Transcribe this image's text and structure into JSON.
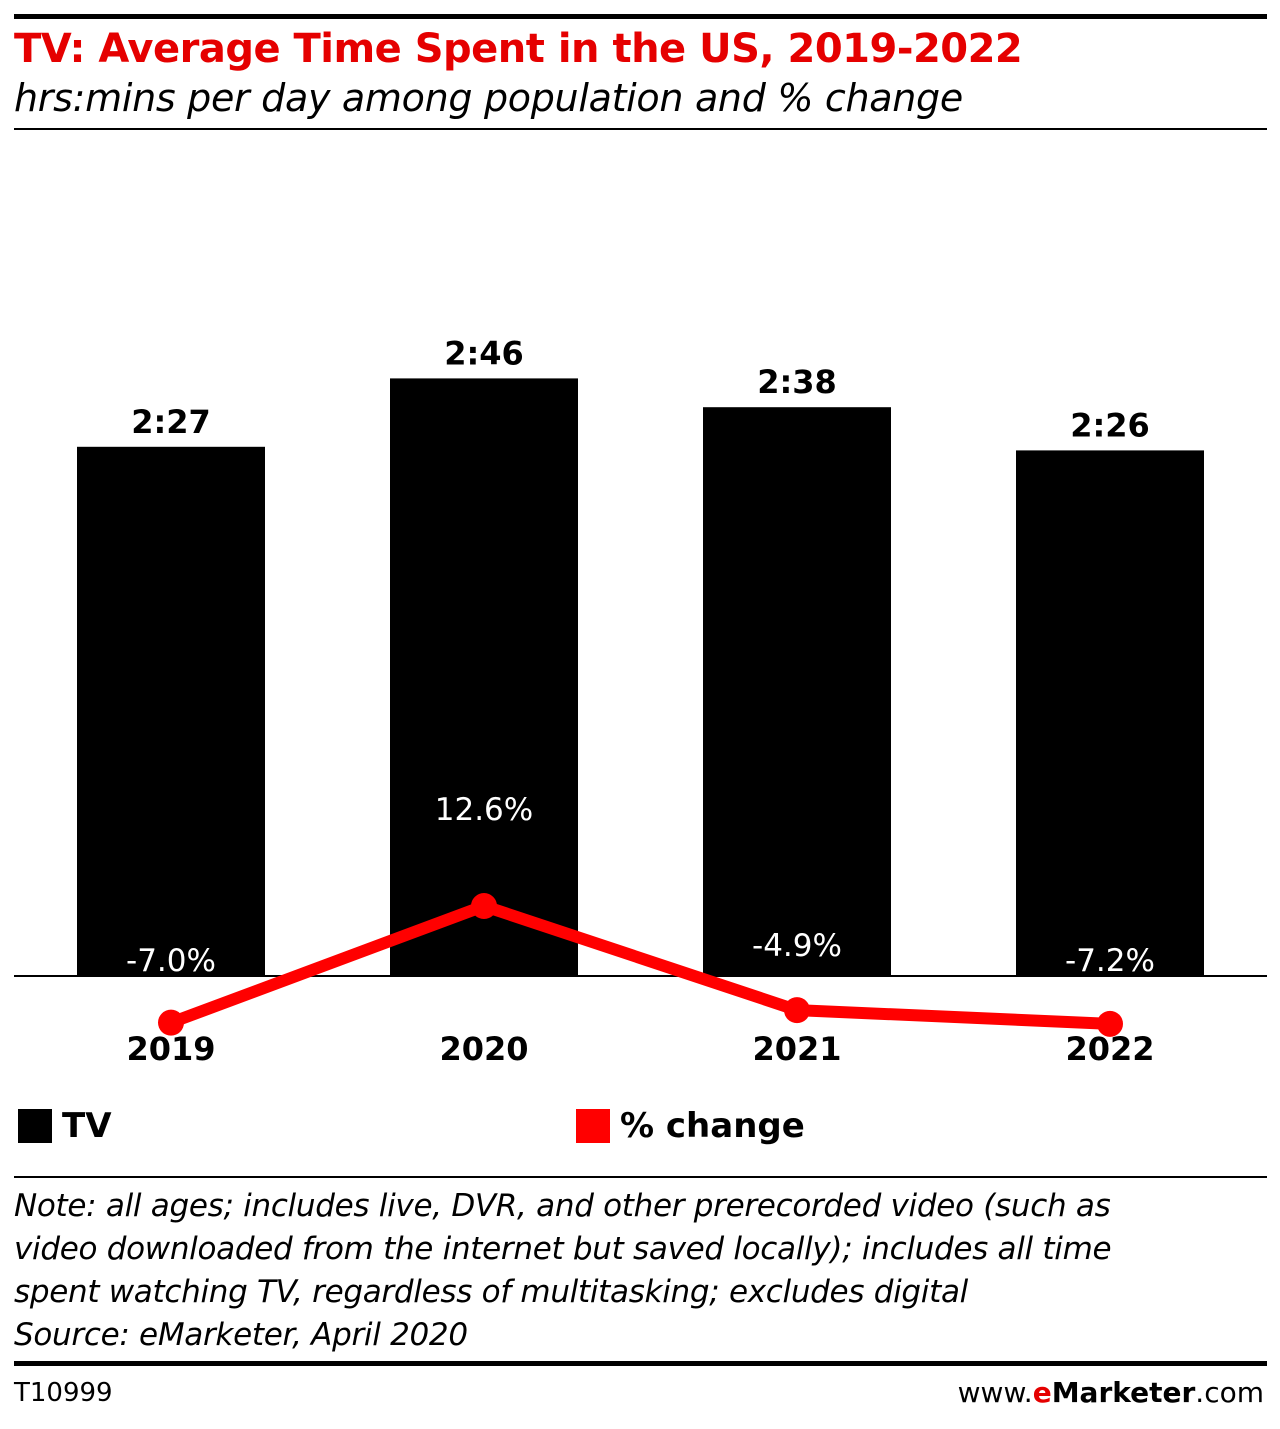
{
  "header": {
    "title": "TV: Average Time Spent in the US, 2019-2022",
    "subtitle": "hrs:mins per day among population and % change"
  },
  "colors": {
    "bar": "#000000",
    "line": "#ff0000",
    "title": "#e50000"
  },
  "chart_data": {
    "type": "bar",
    "title": "TV: Average Time Spent in the US, 2019-2022",
    "subtitle": "hrs:mins per day among population and % change",
    "categories": [
      "2019",
      "2020",
      "2021",
      "2022"
    ],
    "series": [
      {
        "name": "TV",
        "kind": "bar",
        "values_minutes": [
          147,
          166,
          158,
          146
        ],
        "labels": [
          "2:27",
          "2:46",
          "2:38",
          "2:26"
        ]
      },
      {
        "name": "% change",
        "kind": "line",
        "values": [
          -7.0,
          12.6,
          -4.9,
          -7.2
        ],
        "labels": [
          "-7.0%",
          "12.6%",
          "-4.9%",
          "-7.2%"
        ]
      }
    ],
    "legend": [
      "TV",
      "% change"
    ],
    "legend_position": "bottom",
    "grid": false
  },
  "legend": {
    "tv": "TV",
    "change": "% change"
  },
  "footer": {
    "note_lines": [
      "Note: all ages; includes live, DVR, and other prerecorded video (such as",
      "video downloaded from the internet but saved locally); includes all time",
      "spent watching TV, regardless of multitasking; excludes digital",
      "Source: eMarketer, April 2020"
    ],
    "code": "T10999",
    "brand_prefix": "www.",
    "brand_e": "e",
    "brand_name": "Marketer",
    "brand_suffix": ".com"
  }
}
